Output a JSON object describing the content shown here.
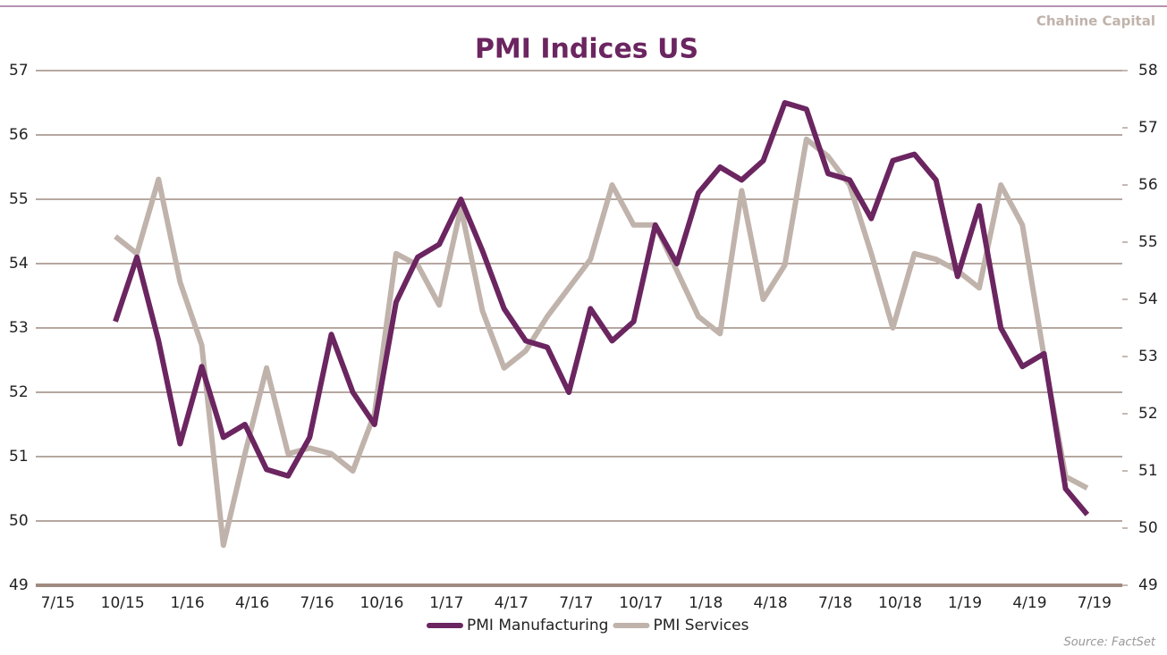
{
  "chart_data": {
    "type": "line",
    "title": "PMI Indices US",
    "brand": "Chahine Capital",
    "source": "Source: FactSet",
    "categories": [
      "7/15",
      null,
      null,
      "10/15",
      null,
      null,
      "1/16",
      null,
      null,
      "4/16",
      null,
      null,
      "7/16",
      null,
      null,
      "10/16",
      null,
      null,
      "1/17",
      null,
      null,
      "4/17",
      null,
      null,
      "7/17",
      null,
      null,
      "10/17",
      null,
      null,
      "1/18",
      null,
      null,
      "4/18",
      null,
      null,
      "7/18",
      null,
      null,
      "10/18",
      null,
      null,
      "1/19",
      null,
      null,
      "4/19",
      null,
      null,
      "7/19"
    ],
    "series": [
      {
        "name": "PMI Manufacturing",
        "color": "#6b2560",
        "axis": "y",
        "values": [
          null,
          null,
          53.1,
          54.1,
          52.8,
          51.2,
          52.4,
          51.3,
          51.5,
          50.8,
          50.7,
          51.3,
          52.9,
          52.0,
          51.5,
          53.4,
          54.1,
          54.3,
          55.0,
          54.2,
          53.3,
          52.8,
          52.7,
          52.0,
          53.3,
          52.8,
          53.1,
          54.6,
          54.0,
          55.1,
          55.5,
          55.3,
          55.6,
          56.5,
          56.4,
          55.4,
          55.3,
          54.7,
          55.6,
          55.7,
          55.3,
          53.8,
          54.9,
          53.0,
          52.4,
          52.6,
          50.5,
          50.1,
          null
        ]
      },
      {
        "name": "PMI Services",
        "color": "#c0b3ab",
        "axis": "y2",
        "values": [
          null,
          null,
          55.1,
          54.8,
          56.1,
          54.3,
          53.2,
          49.7,
          51.3,
          52.8,
          51.3,
          51.4,
          51.3,
          51.0,
          52.0,
          54.8,
          54.6,
          53.9,
          55.6,
          53.8,
          52.8,
          53.1,
          53.7,
          54.2,
          54.7,
          56.0,
          55.3,
          55.3,
          54.5,
          53.7,
          53.4,
          55.9,
          54.0,
          54.6,
          56.8,
          56.5,
          56.0,
          54.8,
          53.5,
          54.8,
          54.7,
          54.5,
          54.2,
          56.0,
          55.3,
          53.0,
          50.9,
          50.7,
          null
        ]
      }
    ],
    "ylim": [
      49,
      57
    ],
    "yticks": [
      49,
      50,
      51,
      52,
      53,
      54,
      55,
      56,
      57
    ],
    "y2lim": [
      49,
      58
    ],
    "y2ticks": [
      49,
      50,
      51,
      52,
      53,
      54,
      55,
      56,
      57,
      58
    ],
    "grid": true,
    "legend": "bottom"
  }
}
